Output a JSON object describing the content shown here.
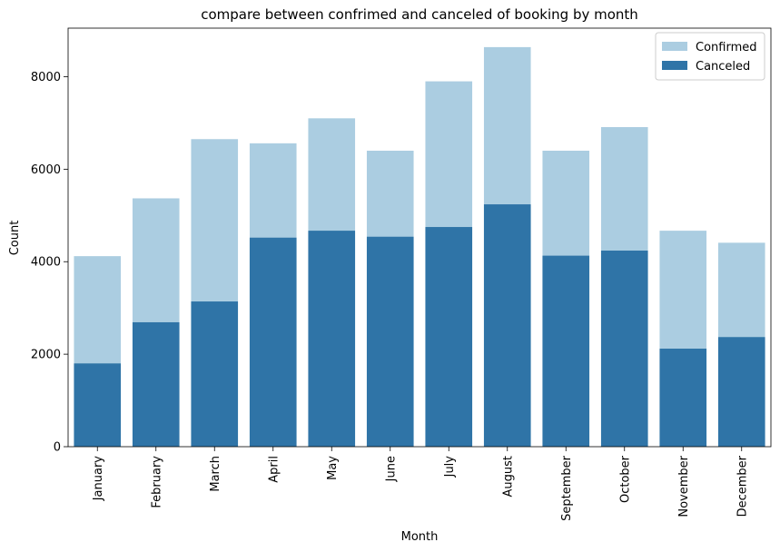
{
  "chart_data": {
    "type": "bar",
    "title": "compare between confrimed and canceled of booking by month",
    "xlabel": "Month",
    "ylabel": "Count",
    "categories": [
      "January",
      "February",
      "March",
      "April",
      "May",
      "June",
      "July",
      "August",
      "September",
      "October",
      "November",
      "December"
    ],
    "ylim": [
      0,
      9050
    ],
    "yticks": [
      0,
      2000,
      4000,
      6000,
      8000
    ],
    "grid": false,
    "legend_position": "top-right",
    "series": [
      {
        "name": "Confirmed",
        "color": "#abcde1",
        "values": [
          4120,
          5370,
          6650,
          6560,
          7100,
          6400,
          7900,
          8640,
          6400,
          6910,
          4670,
          4410
        ]
      },
      {
        "name": "Canceled",
        "color": "#2f74a7",
        "values": [
          1800,
          2690,
          3140,
          4520,
          4670,
          4540,
          4750,
          5240,
          4130,
          4240,
          2120,
          2370
        ]
      }
    ]
  }
}
